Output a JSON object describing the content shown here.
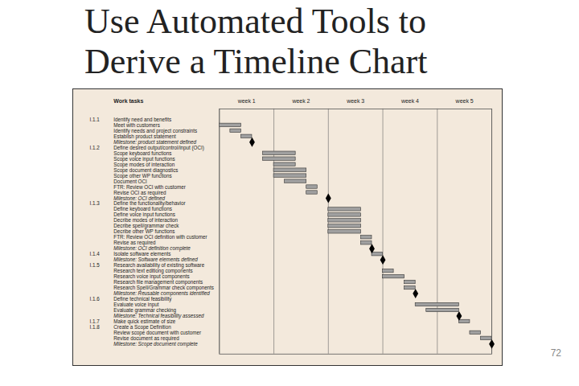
{
  "slide": {
    "title": "Use Automated Tools to Derive a Timeline Chart",
    "page_number": "72"
  },
  "chart_data": {
    "type": "gantt",
    "header": "Work tasks",
    "columns": [
      "week 1",
      "week 2",
      "week 3",
      "week 4",
      "week 5"
    ],
    "xlim": [
      0,
      25
    ],
    "xticks": [
      0,
      5,
      10,
      15,
      20,
      25
    ],
    "tick_labels": false,
    "grid": true,
    "color": "#a0a0a0",
    "tasks": [
      {
        "id": "I.1.1",
        "label": "Identify need and benefits"
      },
      {
        "label": "Meet with customers",
        "start": 0,
        "end": 2
      },
      {
        "label": "Identify needs and project constraints",
        "start": 1,
        "end": 2
      },
      {
        "label": "Establish product statement",
        "start": 2,
        "end": 3
      },
      {
        "label": "Milestone: product statement defined",
        "milestone": 3
      },
      {
        "id": "I.1.2",
        "label": "Define desired output/control/input (OCI)"
      },
      {
        "label": "Scope keyboard functions",
        "start": 4,
        "end": 7
      },
      {
        "label": "Scope voice input functions",
        "start": 4,
        "end": 7
      },
      {
        "label": "Scope modes of interaction",
        "start": 5,
        "end": 7
      },
      {
        "label": "Scope document diagnostics",
        "start": 5,
        "end": 8
      },
      {
        "label": "Scope other WP functions",
        "start": 5,
        "end": 8
      },
      {
        "label": "Document OCI",
        "start": 6,
        "end": 8
      },
      {
        "label": "FTR: Review OCI with customer",
        "start": 8,
        "end": 9
      },
      {
        "label": "Revise OCI as required",
        "start": 8,
        "end": 9
      },
      {
        "label": "Milestone: OCI defined",
        "milestone": 10
      },
      {
        "id": "I.1.3",
        "label": "Define the functionality/behavior"
      },
      {
        "label": "Define keyboard functions",
        "start": 10,
        "end": 13
      },
      {
        "label": "Define voice input functions",
        "start": 10,
        "end": 13
      },
      {
        "label": "Decribe modes of interaction",
        "start": 10,
        "end": 13
      },
      {
        "label": "Decribe spell/grammar check",
        "start": 10,
        "end": 13
      },
      {
        "label": "Decribe other WP functions",
        "start": 10,
        "end": 13
      },
      {
        "label": "FTR: Review OCI definition with customer",
        "start": 13,
        "end": 14
      },
      {
        "label": "Revise as required",
        "start": 13,
        "end": 14
      },
      {
        "label": "Milestone: OCI definition complete",
        "milestone": 14
      },
      {
        "id": "I.1.4",
        "label": "Isolate software elements",
        "start": 14,
        "end": 15
      },
      {
        "label": "Milestone: Software elements defined",
        "milestone": 15
      },
      {
        "id": "I.1.5",
        "label": "Research availability of existing software"
      },
      {
        "label": "Research text editiong components",
        "start": 15,
        "end": 16
      },
      {
        "label": "Research voice input components",
        "start": 15,
        "end": 17
      },
      {
        "label": "Research file management components",
        "start": 17,
        "end": 18
      },
      {
        "label": "Research Spell/Grammar check components",
        "start": 17,
        "end": 18
      },
      {
        "label": "Milestone: Reusable components identified",
        "milestone": 18
      },
      {
        "id": "I.1.6",
        "label": "Define technical feasibility"
      },
      {
        "label": "Evaluate voice input",
        "start": 18,
        "end": 22
      },
      {
        "label": "Evaluate grammar checking",
        "start": 19,
        "end": 22
      },
      {
        "label": "Milestone: Technical feasibility assessed",
        "milestone": 22
      },
      {
        "id": "I.1.7",
        "label": "Make quick estimate of size",
        "start": 22,
        "end": 23
      },
      {
        "id": "I.1.8",
        "label": "Create a Scope Definition"
      },
      {
        "label": "Review scope document with customer",
        "start": 23,
        "end": 24
      },
      {
        "label": "Revise document as required",
        "start": 24,
        "end": 25
      },
      {
        "label": "Milestone: Scope document complete",
        "milestone": 25
      }
    ]
  }
}
